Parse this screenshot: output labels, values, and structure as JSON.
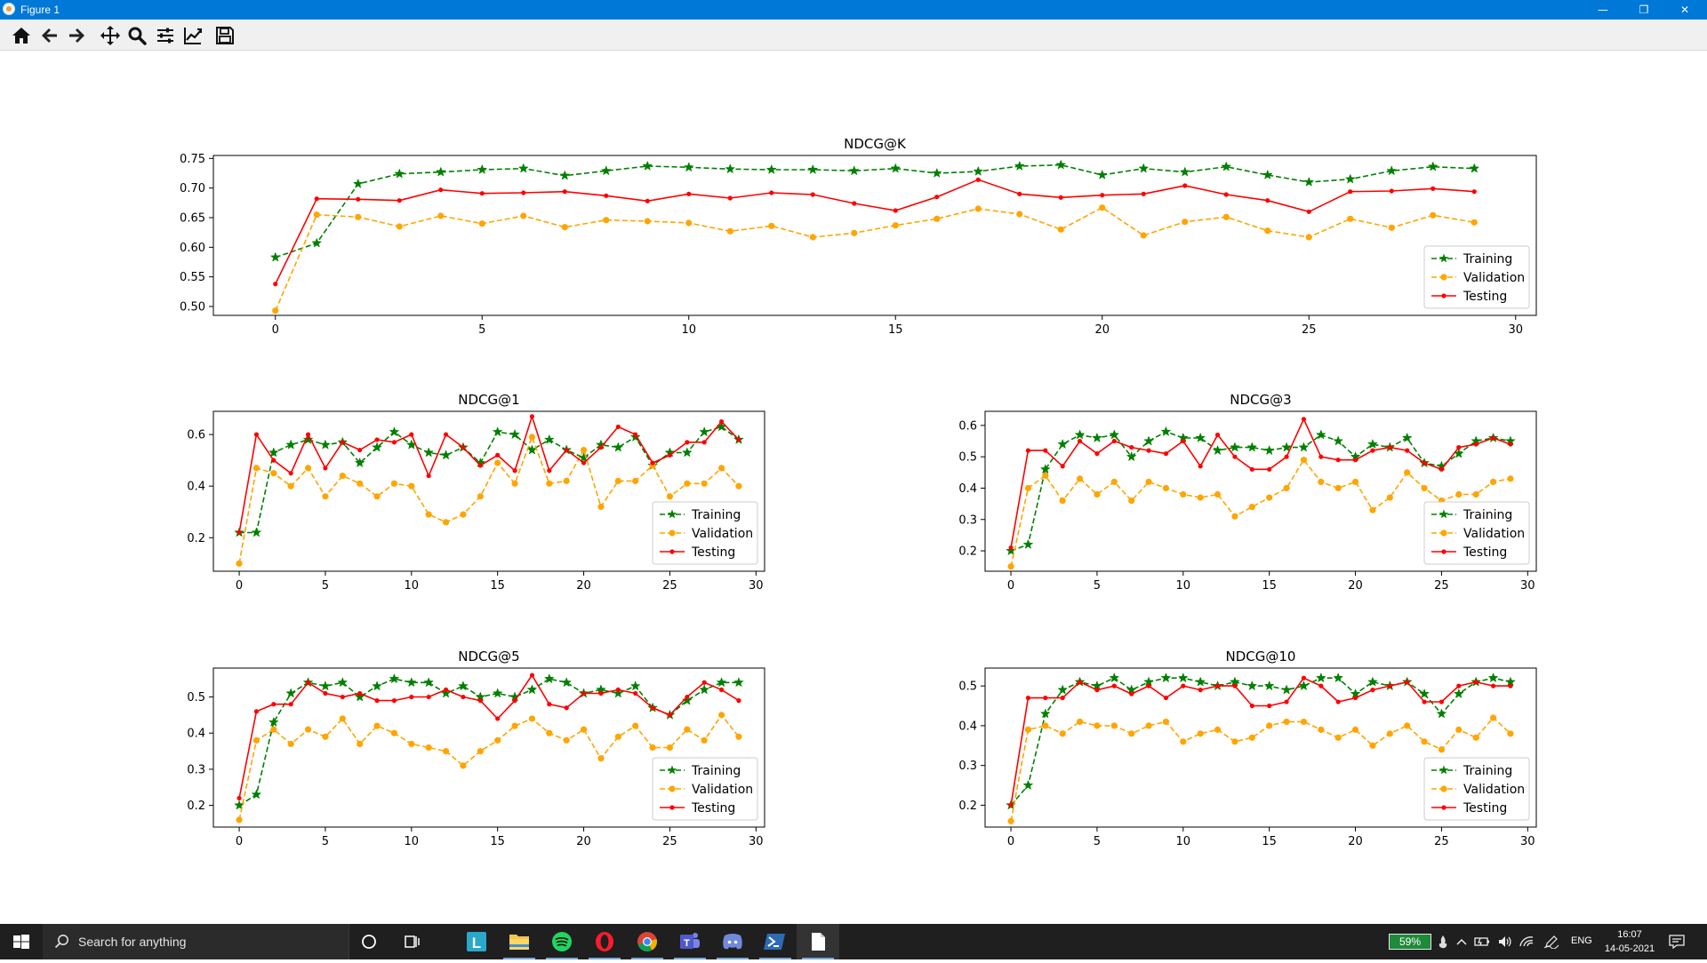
{
  "window": {
    "title": "Figure 1"
  },
  "window_controls": {
    "minimize": "—",
    "restore": "❐",
    "close": "✕"
  },
  "toolbar": {
    "tools": [
      "home-icon",
      "back-arrow-icon",
      "forward-arrow-icon",
      "pan-move-icon",
      "zoom-magnifier-icon",
      "configure-subplots-icon",
      "edit-axes-icon",
      "save-figure-icon"
    ]
  },
  "colors": {
    "training": "#008000",
    "validation": "#ffa500",
    "testing": "#ff0000",
    "titlebar": "#0078d7",
    "taskbar": "#1f1f1f"
  },
  "chart_data": [
    {
      "type": "line",
      "title": "NDCG@K",
      "xlabel": "",
      "ylabel": "",
      "xlim": [
        -1.5,
        30.5
      ],
      "ylim": [
        0.485,
        0.755
      ],
      "xticks": [
        0,
        5,
        10,
        15,
        20,
        25,
        30
      ],
      "yticks": [
        0.5,
        0.55,
        0.6,
        0.65,
        0.7,
        0.75
      ],
      "ytick_labels": [
        "0.50",
        "0.55",
        "0.60",
        "0.65",
        "0.70",
        "0.75"
      ],
      "legend": "lower-right",
      "x": [
        0,
        1,
        2,
        3,
        4,
        5,
        6,
        7,
        8,
        9,
        10,
        11,
        12,
        13,
        14,
        15,
        16,
        17,
        18,
        19,
        20,
        21,
        22,
        23,
        24,
        25,
        26,
        27,
        28,
        29
      ],
      "series": [
        {
          "name": "Training",
          "style": "dashed-star",
          "values": [
            0.583,
            0.607,
            0.707,
            0.724,
            0.727,
            0.731,
            0.733,
            0.721,
            0.729,
            0.737,
            0.735,
            0.732,
            0.731,
            0.731,
            0.729,
            0.733,
            0.725,
            0.728,
            0.737,
            0.739,
            0.722,
            0.733,
            0.727,
            0.736,
            0.722,
            0.71,
            0.715,
            0.729,
            0.736,
            0.733
          ]
        },
        {
          "name": "Validation",
          "style": "dashed-circle",
          "values": [
            0.493,
            0.655,
            0.651,
            0.635,
            0.653,
            0.64,
            0.653,
            0.634,
            0.646,
            0.644,
            0.641,
            0.627,
            0.636,
            0.617,
            0.624,
            0.637,
            0.648,
            0.665,
            0.656,
            0.63,
            0.667,
            0.62,
            0.643,
            0.651,
            0.628,
            0.617,
            0.648,
            0.633,
            0.654,
            0.642
          ]
        },
        {
          "name": "Testing",
          "style": "solid-dot",
          "values": [
            0.538,
            0.682,
            0.681,
            0.679,
            0.697,
            0.691,
            0.692,
            0.694,
            0.687,
            0.678,
            0.69,
            0.683,
            0.692,
            0.689,
            0.674,
            0.662,
            0.685,
            0.714,
            0.69,
            0.684,
            0.688,
            0.69,
            0.704,
            0.689,
            0.679,
            0.66,
            0.694,
            0.695,
            0.699,
            0.694
          ]
        }
      ]
    },
    {
      "type": "line",
      "title": "NDCG@1",
      "xlabel": "",
      "ylabel": "",
      "xlim": [
        -1.5,
        30.5
      ],
      "ylim": [
        0.07,
        0.69
      ],
      "xticks": [
        0,
        5,
        10,
        15,
        20,
        25,
        30
      ],
      "yticks": [
        0.2,
        0.4,
        0.6
      ],
      "ytick_labels": [
        "0.2",
        "0.4",
        "0.6"
      ],
      "legend": "lower-right",
      "x": [
        0,
        1,
        2,
        3,
        4,
        5,
        6,
        7,
        8,
        9,
        10,
        11,
        12,
        13,
        14,
        15,
        16,
        17,
        18,
        19,
        20,
        21,
        22,
        23,
        24,
        25,
        26,
        27,
        28,
        29
      ],
      "series": [
        {
          "name": "Training",
          "style": "dashed-star",
          "values": [
            0.22,
            0.22,
            0.53,
            0.56,
            0.58,
            0.56,
            0.57,
            0.49,
            0.55,
            0.61,
            0.56,
            0.53,
            0.52,
            0.55,
            0.49,
            0.61,
            0.6,
            0.54,
            0.58,
            0.54,
            0.51,
            0.56,
            0.55,
            0.59,
            0.48,
            0.53,
            0.53,
            0.61,
            0.63,
            0.58
          ]
        },
        {
          "name": "Validation",
          "style": "dashed-circle",
          "values": [
            0.1,
            0.47,
            0.45,
            0.4,
            0.47,
            0.36,
            0.44,
            0.41,
            0.36,
            0.41,
            0.4,
            0.29,
            0.26,
            0.29,
            0.36,
            0.49,
            0.41,
            0.59,
            0.41,
            0.42,
            0.54,
            0.32,
            0.42,
            0.42,
            0.48,
            0.36,
            0.41,
            0.41,
            0.47,
            0.4
          ]
        },
        {
          "name": "Testing",
          "style": "solid-dot",
          "values": [
            0.22,
            0.6,
            0.5,
            0.45,
            0.6,
            0.47,
            0.57,
            0.54,
            0.58,
            0.57,
            0.6,
            0.44,
            0.6,
            0.55,
            0.48,
            0.52,
            0.46,
            0.67,
            0.46,
            0.54,
            0.49,
            0.55,
            0.63,
            0.6,
            0.49,
            0.52,
            0.57,
            0.57,
            0.65,
            0.58
          ]
        }
      ]
    },
    {
      "type": "line",
      "title": "NDCG@3",
      "xlabel": "",
      "ylabel": "",
      "xlim": [
        -1.5,
        30.5
      ],
      "ylim": [
        0.135,
        0.645
      ],
      "xticks": [
        0,
        5,
        10,
        15,
        20,
        25,
        30
      ],
      "yticks": [
        0.2,
        0.3,
        0.4,
        0.5,
        0.6
      ],
      "ytick_labels": [
        "0.2",
        "0.3",
        "0.4",
        "0.5",
        "0.6"
      ],
      "legend": "lower-right",
      "x": [
        0,
        1,
        2,
        3,
        4,
        5,
        6,
        7,
        8,
        9,
        10,
        11,
        12,
        13,
        14,
        15,
        16,
        17,
        18,
        19,
        20,
        21,
        22,
        23,
        24,
        25,
        26,
        27,
        28,
        29
      ],
      "series": [
        {
          "name": "Training",
          "style": "dashed-star",
          "values": [
            0.2,
            0.22,
            0.46,
            0.54,
            0.57,
            0.56,
            0.57,
            0.5,
            0.55,
            0.58,
            0.56,
            0.56,
            0.52,
            0.53,
            0.53,
            0.52,
            0.53,
            0.53,
            0.57,
            0.55,
            0.5,
            0.54,
            0.53,
            0.56,
            0.48,
            0.47,
            0.51,
            0.55,
            0.56,
            0.55
          ]
        },
        {
          "name": "Validation",
          "style": "dashed-circle",
          "values": [
            0.15,
            0.4,
            0.44,
            0.36,
            0.43,
            0.38,
            0.42,
            0.36,
            0.42,
            0.4,
            0.38,
            0.37,
            0.38,
            0.31,
            0.34,
            0.37,
            0.4,
            0.49,
            0.42,
            0.4,
            0.42,
            0.33,
            0.37,
            0.45,
            0.4,
            0.36,
            0.38,
            0.38,
            0.42,
            0.43
          ]
        },
        {
          "name": "Testing",
          "style": "solid-dot",
          "values": [
            0.21,
            0.52,
            0.52,
            0.47,
            0.55,
            0.51,
            0.55,
            0.53,
            0.52,
            0.51,
            0.55,
            0.47,
            0.57,
            0.5,
            0.46,
            0.46,
            0.5,
            0.62,
            0.5,
            0.49,
            0.49,
            0.52,
            0.53,
            0.52,
            0.48,
            0.46,
            0.53,
            0.54,
            0.56,
            0.54
          ]
        }
      ]
    },
    {
      "type": "line",
      "title": "NDCG@5",
      "xlabel": "",
      "ylabel": "",
      "xlim": [
        -1.5,
        30.5
      ],
      "ylim": [
        0.14,
        0.58
      ],
      "xticks": [
        0,
        5,
        10,
        15,
        20,
        25,
        30
      ],
      "yticks": [
        0.2,
        0.3,
        0.4,
        0.5
      ],
      "ytick_labels": [
        "0.2",
        "0.3",
        "0.4",
        "0.5"
      ],
      "legend": "lower-right",
      "x": [
        0,
        1,
        2,
        3,
        4,
        5,
        6,
        7,
        8,
        9,
        10,
        11,
        12,
        13,
        14,
        15,
        16,
        17,
        18,
        19,
        20,
        21,
        22,
        23,
        24,
        25,
        26,
        27,
        28,
        29
      ],
      "series": [
        {
          "name": "Training",
          "style": "dashed-star",
          "values": [
            0.2,
            0.23,
            0.43,
            0.51,
            0.54,
            0.53,
            0.54,
            0.5,
            0.53,
            0.55,
            0.54,
            0.54,
            0.51,
            0.53,
            0.5,
            0.51,
            0.5,
            0.52,
            0.55,
            0.54,
            0.51,
            0.52,
            0.51,
            0.53,
            0.47,
            0.45,
            0.49,
            0.52,
            0.54,
            0.54
          ]
        },
        {
          "name": "Validation",
          "style": "dashed-circle",
          "values": [
            0.16,
            0.38,
            0.41,
            0.37,
            0.41,
            0.39,
            0.44,
            0.37,
            0.42,
            0.4,
            0.37,
            0.36,
            0.35,
            0.31,
            0.35,
            0.38,
            0.42,
            0.44,
            0.4,
            0.38,
            0.41,
            0.33,
            0.39,
            0.42,
            0.36,
            0.36,
            0.41,
            0.38,
            0.45,
            0.39
          ]
        },
        {
          "name": "Testing",
          "style": "solid-dot",
          "values": [
            0.22,
            0.46,
            0.48,
            0.48,
            0.54,
            0.51,
            0.5,
            0.51,
            0.49,
            0.49,
            0.5,
            0.5,
            0.52,
            0.5,
            0.49,
            0.44,
            0.49,
            0.56,
            0.48,
            0.47,
            0.51,
            0.51,
            0.52,
            0.51,
            0.47,
            0.45,
            0.5,
            0.54,
            0.52,
            0.49
          ]
        }
      ]
    },
    {
      "type": "line",
      "title": "NDCG@10",
      "xlabel": "",
      "ylabel": "",
      "xlim": [
        -1.5,
        30.5
      ],
      "ylim": [
        0.145,
        0.545
      ],
      "xticks": [
        0,
        5,
        10,
        15,
        20,
        25,
        30
      ],
      "yticks": [
        0.2,
        0.3,
        0.4,
        0.5
      ],
      "ytick_labels": [
        "0.2",
        "0.3",
        "0.4",
        "0.5"
      ],
      "legend": "lower-right",
      "x": [
        0,
        1,
        2,
        3,
        4,
        5,
        6,
        7,
        8,
        9,
        10,
        11,
        12,
        13,
        14,
        15,
        16,
        17,
        18,
        19,
        20,
        21,
        22,
        23,
        24,
        25,
        26,
        27,
        28,
        29
      ],
      "series": [
        {
          "name": "Training",
          "style": "dashed-star",
          "values": [
            0.2,
            0.25,
            0.43,
            0.49,
            0.51,
            0.5,
            0.52,
            0.49,
            0.51,
            0.52,
            0.52,
            0.51,
            0.5,
            0.51,
            0.5,
            0.5,
            0.49,
            0.5,
            0.52,
            0.52,
            0.48,
            0.51,
            0.5,
            0.51,
            0.48,
            0.43,
            0.48,
            0.51,
            0.52,
            0.51
          ]
        },
        {
          "name": "Validation",
          "style": "dashed-circle",
          "values": [
            0.16,
            0.39,
            0.4,
            0.38,
            0.41,
            0.4,
            0.4,
            0.38,
            0.4,
            0.41,
            0.36,
            0.38,
            0.39,
            0.36,
            0.37,
            0.4,
            0.41,
            0.41,
            0.39,
            0.37,
            0.39,
            0.35,
            0.38,
            0.4,
            0.36,
            0.34,
            0.39,
            0.37,
            0.42,
            0.38
          ]
        },
        {
          "name": "Testing",
          "style": "solid-dot",
          "values": [
            0.2,
            0.47,
            0.47,
            0.47,
            0.51,
            0.49,
            0.5,
            0.48,
            0.5,
            0.47,
            0.5,
            0.49,
            0.5,
            0.5,
            0.45,
            0.45,
            0.46,
            0.52,
            0.5,
            0.46,
            0.47,
            0.49,
            0.5,
            0.51,
            0.46,
            0.46,
            0.5,
            0.51,
            0.5,
            0.5
          ]
        }
      ]
    }
  ],
  "taskbar": {
    "search_placeholder": "Search for anything",
    "apps": [
      "cortana-circle-icon",
      "task-view-icon",
      "launcher-l-icon",
      "file-explorer-icon",
      "spotify-icon",
      "opera-icon",
      "chrome-icon",
      "teams-icon",
      "discord-icon",
      "powershell-icon",
      "notepad-icon"
    ],
    "battery_percent": "59%",
    "language": "ENG",
    "time": "16:07",
    "date": "14-05-2021"
  }
}
